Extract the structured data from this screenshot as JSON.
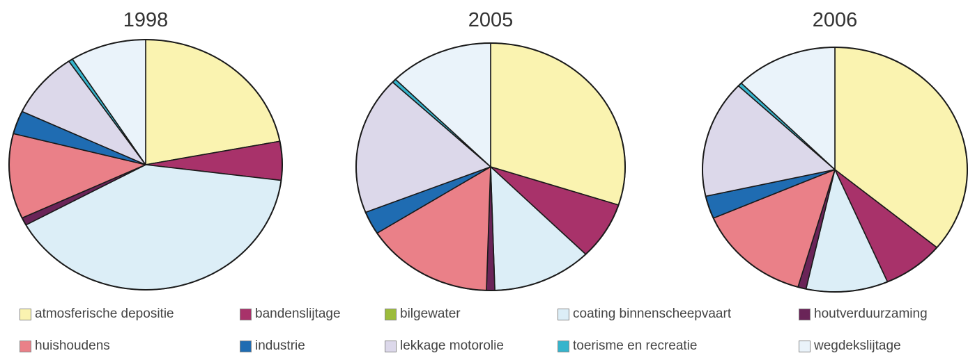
{
  "chart_data": [
    {
      "type": "pie",
      "title": "1998",
      "slices": [
        {
          "label": "atmosferische depositie",
          "value": 22.0
        },
        {
          "label": "bandenslijtage",
          "value": 5.0
        },
        {
          "label": "bilgewater",
          "value": 0.0
        },
        {
          "label": "coating binnenscheepvaart",
          "value": 40.0
        },
        {
          "label": "houtverduurzaming",
          "value": 1.0
        },
        {
          "label": "huishoudens",
          "value": 11.0
        },
        {
          "label": "industrie",
          "value": 3.0
        },
        {
          "label": "lekkage motorolie",
          "value": 8.5
        },
        {
          "label": "toerisme en recreatie",
          "value": 0.5
        },
        {
          "label": "wegdekslijtage",
          "value": 9.0
        }
      ]
    },
    {
      "type": "pie",
      "title": "2005",
      "slices": [
        {
          "label": "atmosferische depositie",
          "value": 30.0
        },
        {
          "label": "bandenslijtage",
          "value": 7.5
        },
        {
          "label": "bilgewater",
          "value": 0.0
        },
        {
          "label": "coating binnenscheepvaart",
          "value": 12.0
        },
        {
          "label": "houtverduurzaming",
          "value": 1.0
        },
        {
          "label": "huishoudens",
          "value": 15.5
        },
        {
          "label": "industrie",
          "value": 3.0
        },
        {
          "label": "lekkage motorolie",
          "value": 18.0
        },
        {
          "label": "toerisme en recreatie",
          "value": 0.5
        },
        {
          "label": "wegdekslijtage",
          "value": 12.5
        }
      ]
    },
    {
      "type": "pie",
      "title": "2006",
      "slices": [
        {
          "label": "atmosferische depositie",
          "value": 36.0
        },
        {
          "label": "bandenslijtage",
          "value": 7.5
        },
        {
          "label": "bilgewater",
          "value": 0.0
        },
        {
          "label": "coating binnenscheepvaart",
          "value": 10.0
        },
        {
          "label": "houtverduurzaming",
          "value": 1.0
        },
        {
          "label": "huishoudens",
          "value": 14.0
        },
        {
          "label": "industrie",
          "value": 3.0
        },
        {
          "label": "lekkage motorolie",
          "value": 15.5
        },
        {
          "label": "toerisme en recreatie",
          "value": 0.5
        },
        {
          "label": "wegdekslijtage",
          "value": 12.5
        }
      ]
    }
  ],
  "legend": [
    {
      "label": "atmosferische depositie",
      "color": "#faf3b0"
    },
    {
      "label": "bandenslijtage",
      "color": "#a8326a"
    },
    {
      "label": "bilgewater",
      "color": "#9cbc3c"
    },
    {
      "label": "coating binnenscheepvaart",
      "color": "#dceef7"
    },
    {
      "label": "houtverduurzaming",
      "color": "#6a2458"
    },
    {
      "label": "huishoudens",
      "color": "#ea8088"
    },
    {
      "label": "industrie",
      "color": "#1f6cb2"
    },
    {
      "label": "lekkage motorolie",
      "color": "#dcd8ea"
    },
    {
      "label": "toerisme en recreatie",
      "color": "#36b4cc"
    },
    {
      "label": "wegdekslijtage",
      "color": "#eaf3fa"
    }
  ]
}
